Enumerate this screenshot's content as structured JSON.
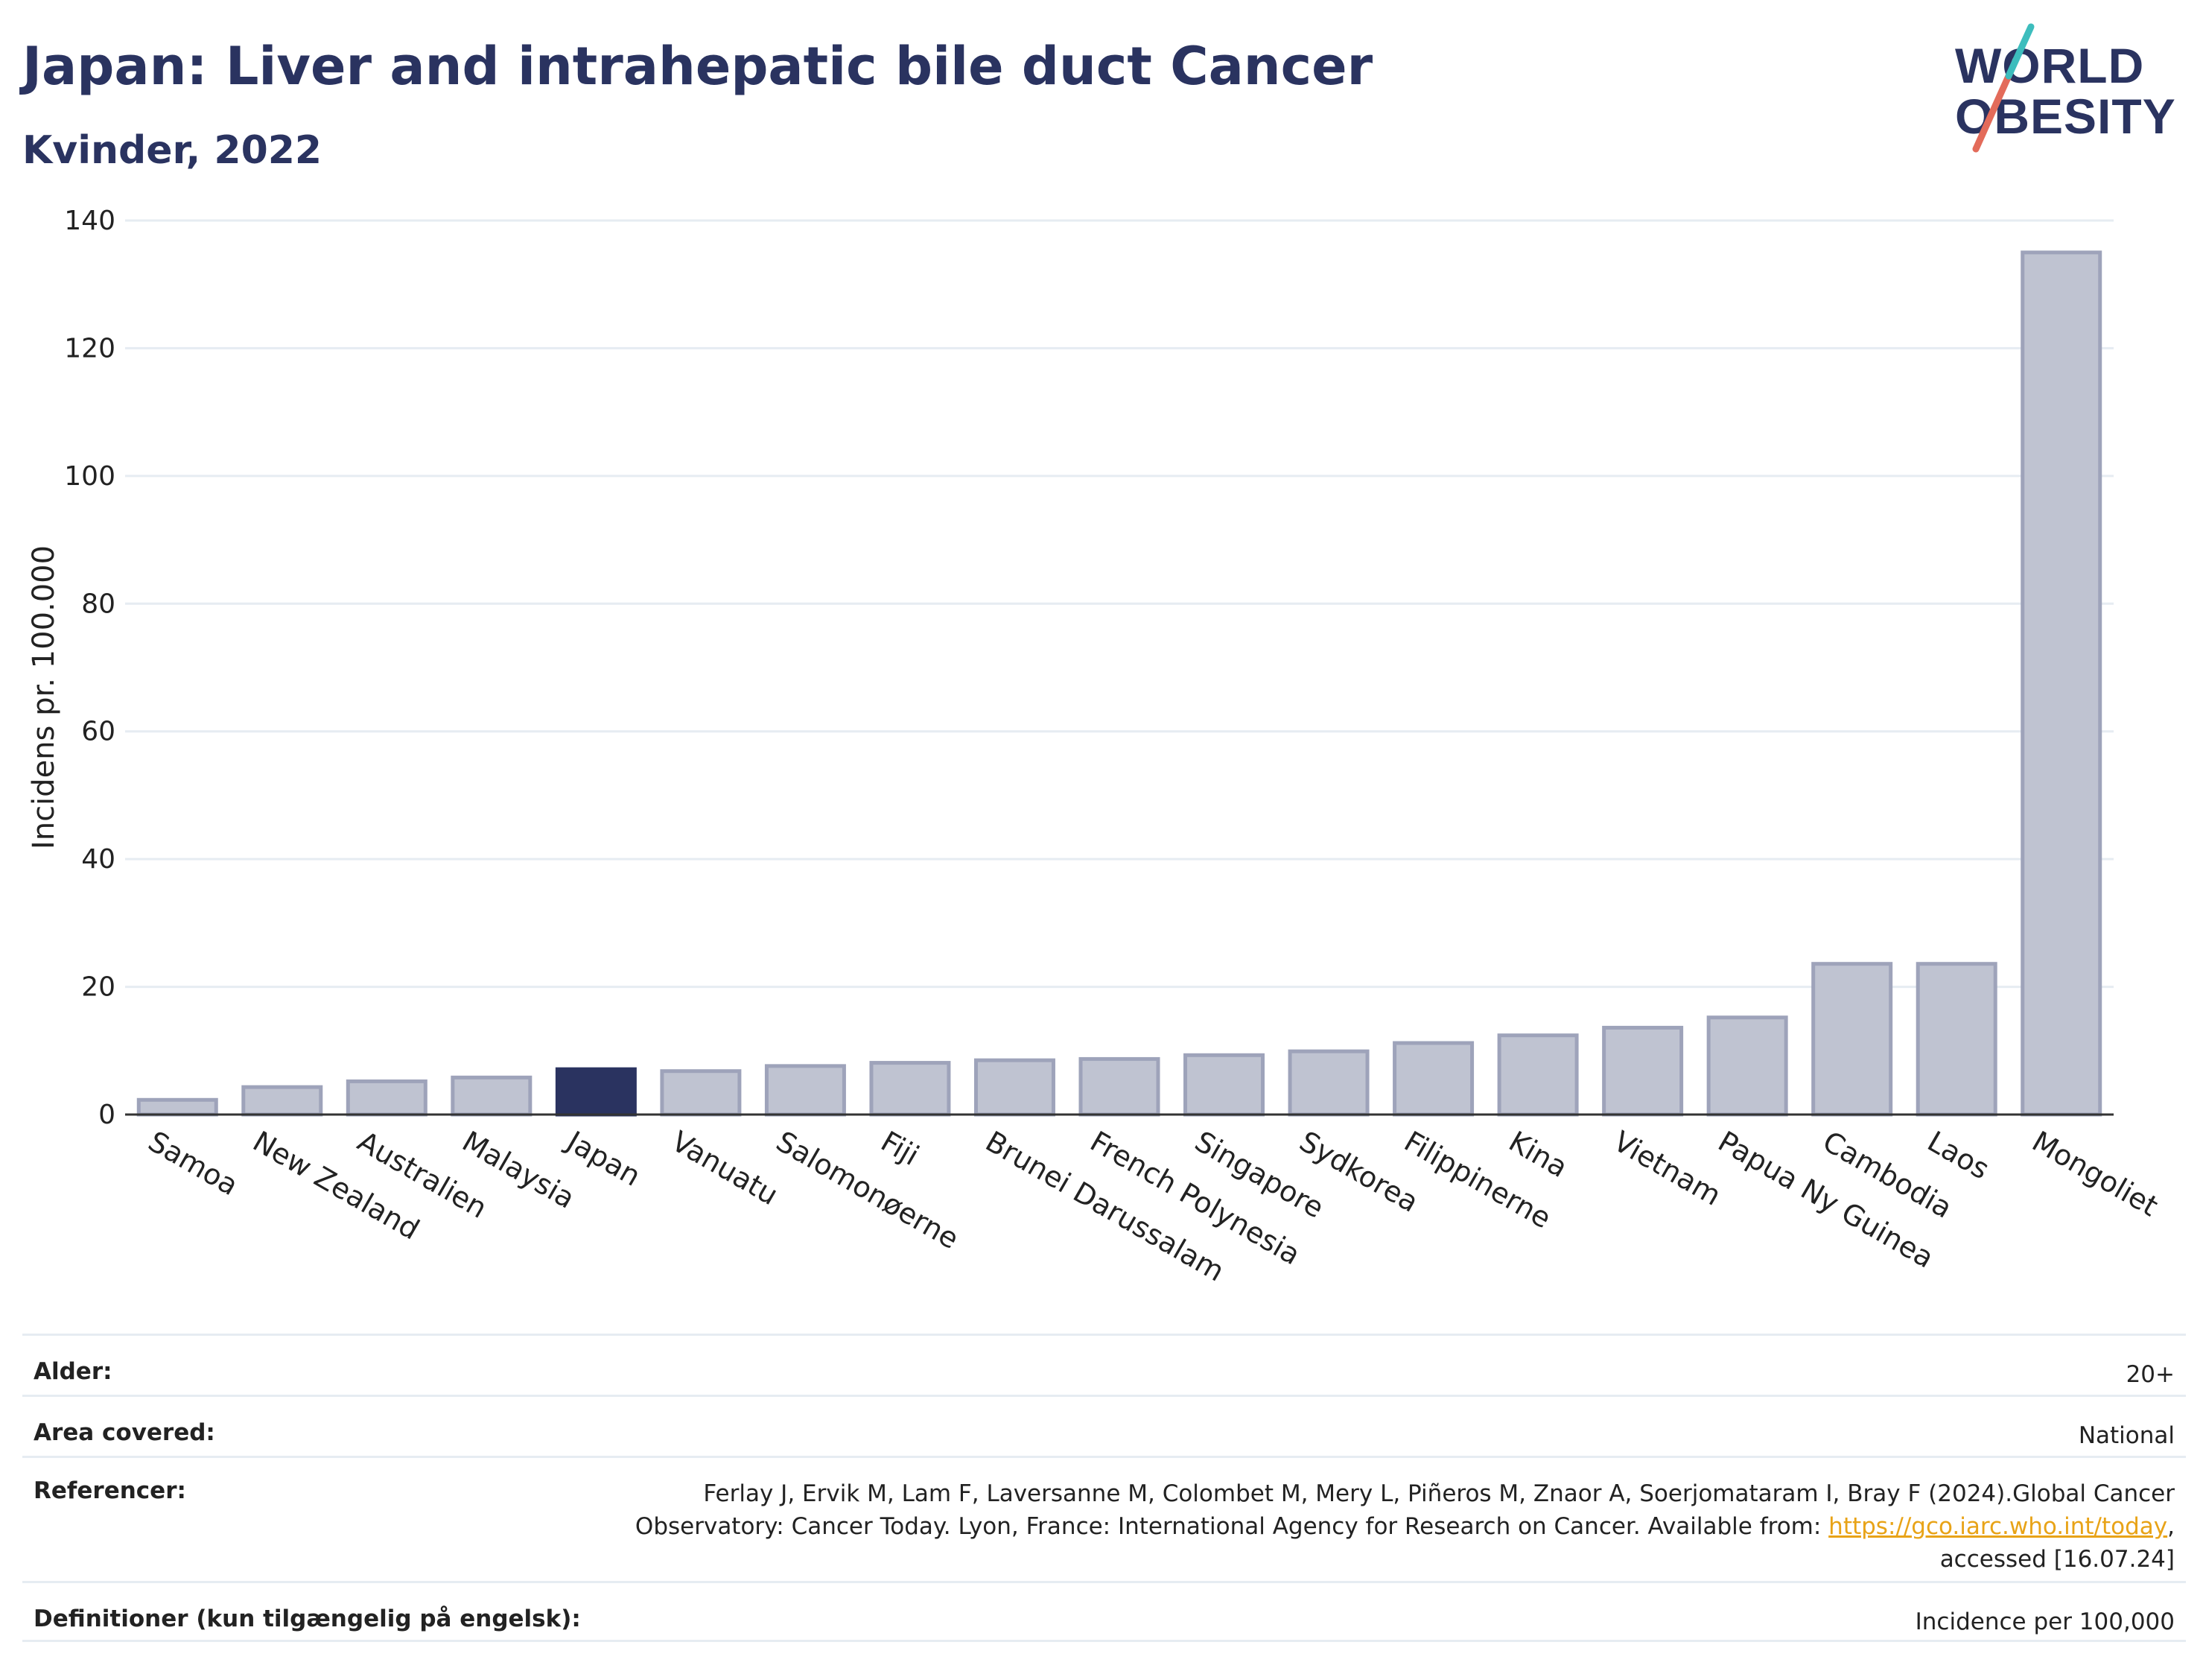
{
  "header": {
    "title": "Japan: Liver and intrahepatic bile duct Cancer",
    "subtitle": "Kvinder, 2022"
  },
  "logo": {
    "line1": "WORLD",
    "line2": "OBESITY"
  },
  "colors": {
    "highlight": "#2a3360",
    "bar": "#bfc3d1",
    "bar_edge": "#9ea3ba",
    "grid": "#e6ecf2",
    "axis": "#333333",
    "link": "#e8a317"
  },
  "chart_data": {
    "type": "bar",
    "title": "Japan: Liver and intrahepatic bile duct Cancer",
    "subtitle": "Kvinder, 2022",
    "xlabel": "",
    "ylabel": "Incidens pr. 100.000",
    "ylim": [
      0,
      140
    ],
    "yticks": [
      0,
      20,
      40,
      60,
      80,
      100,
      120,
      140
    ],
    "grid": true,
    "highlight": "Japan",
    "categories": [
      "Samoa",
      "New Zealand",
      "Australien",
      "Malaysia",
      "Japan",
      "Vanuatu",
      "Salomonøerne",
      "Fiji",
      "Brunei Darussalam",
      "French Polynesia",
      "Singapore",
      "Sydkorea",
      "Filippinerne",
      "Kina",
      "Vietnam",
      "Papua Ny Guinea",
      "Cambodia",
      "Laos",
      "Mongoliet"
    ],
    "values": [
      2.3,
      4.3,
      5.2,
      5.8,
      7.1,
      6.8,
      7.6,
      8.1,
      8.5,
      8.7,
      9.3,
      9.9,
      11.2,
      12.4,
      13.6,
      15.2,
      23.6,
      23.6,
      135.0
    ]
  },
  "info": {
    "age_label": "Alder:",
    "age_value": "20+",
    "area_label": "Area covered:",
    "area_value": "National",
    "ref_label": "Referencer:",
    "ref_line1": "Ferlay J, Ervik M, Lam F, Laversanne M, Colombet M, Mery L, Piñeros M, Znaor A, Soerjomataram I, Bray F (2024).Global Cancer",
    "ref_line2_pre": "Observatory: Cancer Today. Lyon, France: International Agency for Research on Cancer. Available from: ",
    "ref_link": "https://gco.iarc.who.int/today",
    "ref_line2_post": ",",
    "ref_line3": "accessed [16.07.24]",
    "def_label": "Definitioner (kun tilgængelig på engelsk):",
    "def_value": "Incidence per 100,000"
  }
}
